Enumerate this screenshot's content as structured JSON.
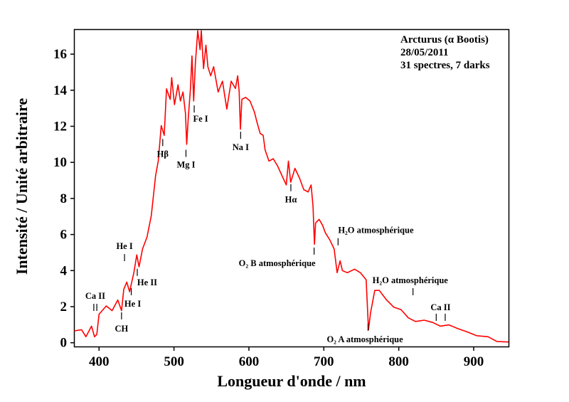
{
  "chart_data": {
    "type": "line",
    "title": "",
    "xlabel": "Longueur d'onde / nm",
    "ylabel": "Intensité / Unité arbitraire",
    "xlim": [
      367,
      947
    ],
    "ylim": [
      0,
      17.4
    ],
    "xticks": [
      400,
      500,
      600,
      700,
      800,
      900
    ],
    "yticks": [
      0,
      2,
      4,
      6,
      8,
      10,
      12,
      14,
      16
    ],
    "grid": false,
    "line_color": "#ff0000",
    "info_box": {
      "placement": "top-right",
      "lines": [
        "Arcturus (α Bootis)",
        "28/05/2011",
        "31 spectres, 7 darks"
      ]
    },
    "series": [
      {
        "name": "Arcturus",
        "x": [
          367,
          376.7,
          382.5,
          390,
          394,
          397,
          400,
          409.6,
          417.4,
          425,
          430,
          433,
          437,
          440.8,
          446.5,
          450.3,
          453.4,
          458,
          464,
          469.7,
          475.5,
          479,
          483,
          487,
          490,
          495,
          497,
          500.7,
          505.4,
          508.5,
          512,
          515.4,
          517,
          519,
          522,
          524,
          526.3,
          528.6,
          531.7,
          534.8,
          536.4,
          539.5,
          542.6,
          545.3,
          549,
          553,
          558.9,
          564.7,
          570.5,
          576.3,
          582,
          585,
          587,
          588.7,
          590.6,
          595.7,
          601.5,
          607.3,
          611,
          615,
          619,
          621.6,
          626.7,
          632.5,
          638.3,
          644,
          649.9,
          652.7,
          655.8,
          661.5,
          667.4,
          673.2,
          679,
          683,
          685.6,
          687.5,
          689,
          693.7,
          698.4,
          702,
          708,
          713.8,
          717.8,
          721.7,
          724.8,
          731.3,
          741,
          748.8,
          756.5,
          759.6,
          762.3,
          768,
          774,
          783.7,
          793.4,
          803,
          812.7,
          822.4,
          834,
          845.6,
          855.4,
          867,
          878.6,
          892,
          903.8,
          919.3,
          931,
          946.5
        ],
        "y": [
          0.66,
          0.72,
          0.33,
          0.92,
          0.33,
          0.46,
          1.58,
          2.04,
          1.78,
          2.37,
          1.78,
          2.96,
          3.36,
          2.83,
          3.88,
          4.87,
          4.21,
          5.2,
          5.86,
          7.04,
          9.28,
          10.07,
          12.04,
          11.5,
          14.08,
          13.49,
          14.7,
          13.2,
          14.3,
          13.4,
          13.9,
          12.7,
          11.0,
          12.4,
          14.1,
          15.9,
          13.4,
          15.5,
          17.3,
          16.25,
          17.3,
          15.2,
          16.5,
          15.3,
          14.8,
          15.3,
          13.9,
          14.5,
          12.96,
          14.5,
          14.1,
          14.8,
          13.9,
          11.84,
          13.5,
          13.6,
          13.4,
          12.8,
          12.2,
          11.6,
          11.5,
          10.7,
          10.07,
          10.2,
          9.8,
          9.28,
          8.75,
          10.07,
          8.9,
          9.67,
          9.14,
          8.49,
          8.36,
          8.75,
          7.57,
          5.46,
          6.64,
          6.84,
          6.51,
          6.1,
          5.7,
          5.2,
          3.88,
          4.54,
          4.0,
          3.88,
          4.08,
          3.88,
          3.49,
          0.72,
          1.64,
          2.9,
          2.9,
          2.37,
          1.97,
          1.84,
          1.38,
          1.18,
          1.25,
          1.12,
          0.92,
          0.99,
          0.79,
          0.59,
          0.39,
          0.33,
          0.07,
          0.04
        ]
      }
    ],
    "annotations": [
      {
        "label": "Ca II",
        "nm": [
          393,
          397
        ],
        "value": 1.96
      },
      {
        "label": "CH",
        "nm": [
          430
        ],
        "value": 1.49
      },
      {
        "label": "He I",
        "nm": [
          434
        ],
        "value": 4.72
      },
      {
        "label": "He I",
        "nm": [
          443
        ],
        "value": 2.83
      },
      {
        "label": "He II",
        "nm": [
          451
        ],
        "value": 3.9
      },
      {
        "label": "Hβ",
        "nm": [
          485
        ],
        "value": 11.1
      },
      {
        "label": "Mg I",
        "nm": [
          516
        ],
        "value": 10.5
      },
      {
        "label": "Fe I",
        "nm": [
          527
        ],
        "value": 12.96
      },
      {
        "label": "Na I",
        "nm": [
          589
        ],
        "value": 11.5
      },
      {
        "label": "Hα",
        "nm": [
          656
        ],
        "value": 8.6
      },
      {
        "label": "O₂ B atmosphérique",
        "nm": [
          687
        ],
        "value": 5.08
      },
      {
        "label": "H₂O atmosphérique",
        "nm": [
          719
        ],
        "value": 5.6
      },
      {
        "label": "H₂O atmosphérique",
        "nm": [
          819
        ],
        "value": 2.83
      },
      {
        "label": "Ca II",
        "nm": [
          850,
          862
        ],
        "value": 1.41
      },
      {
        "label": "O₂ A atmosphérique",
        "nm": [
          759
        ],
        "value": 0.86
      }
    ]
  }
}
